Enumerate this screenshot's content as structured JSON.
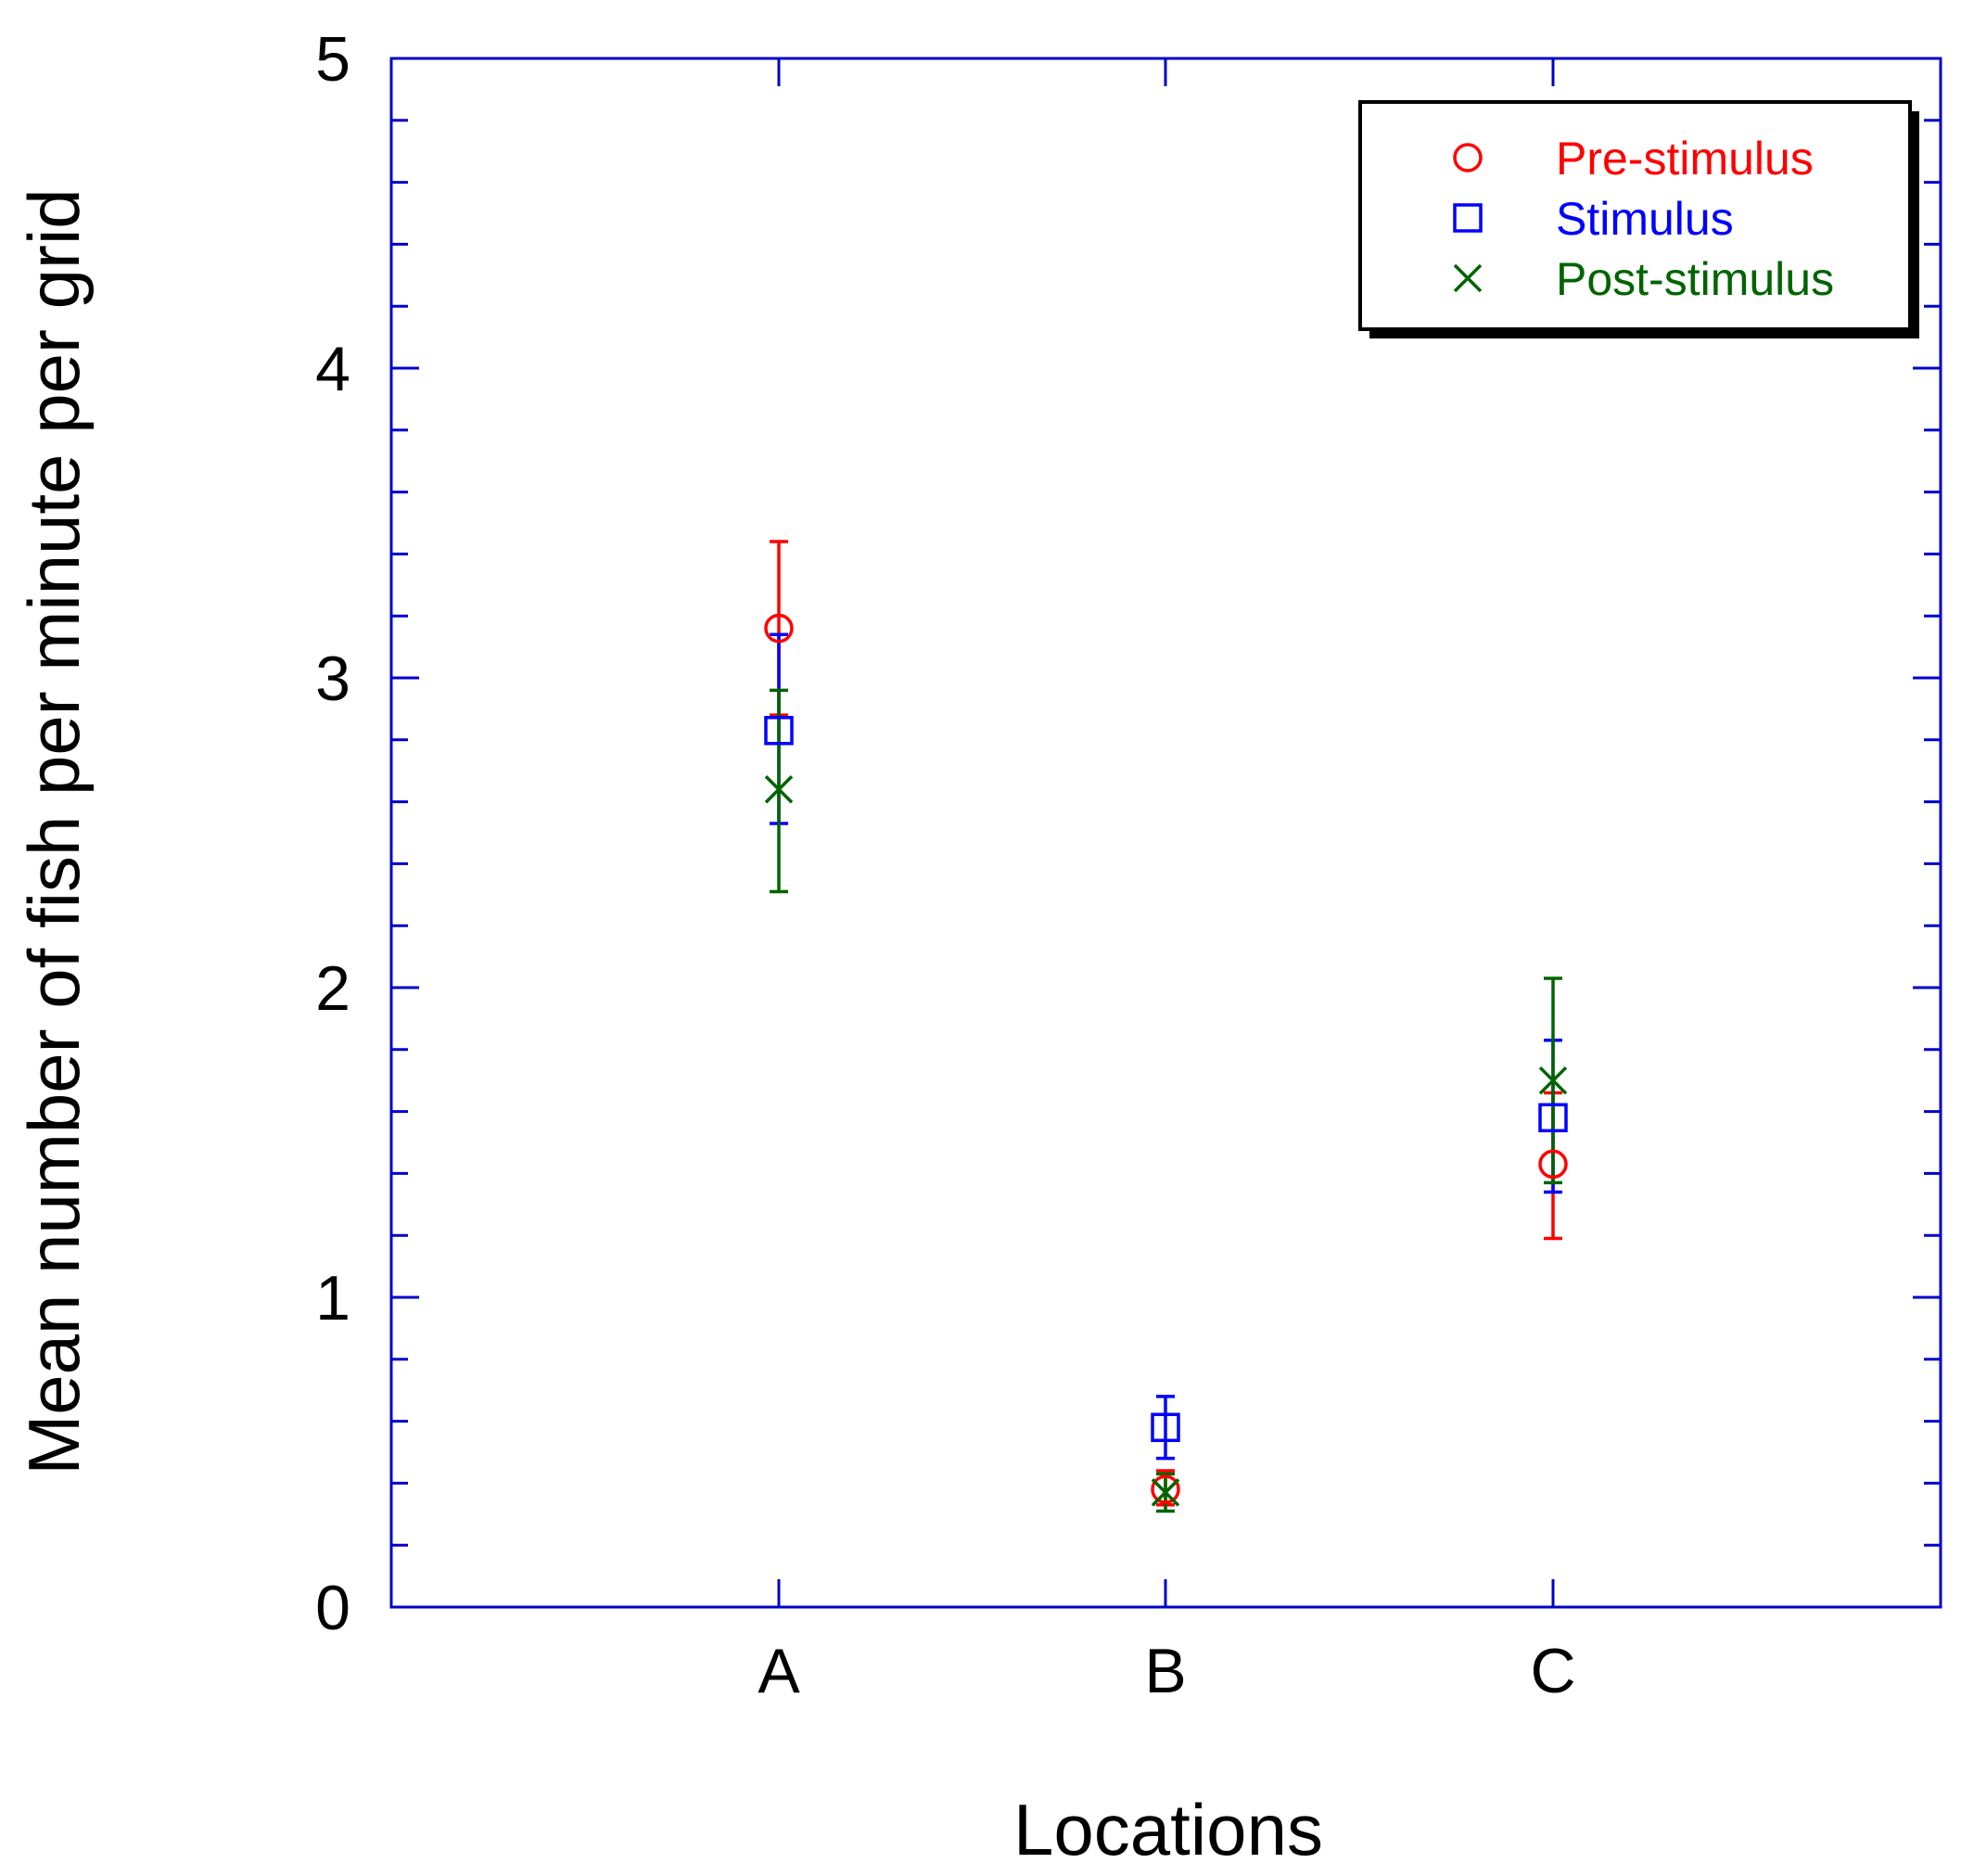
{
  "chart_data": {
    "type": "scatter",
    "title": "",
    "xlabel": "Locations",
    "ylabel": "Mean number of fish per minute per grid",
    "categories": [
      "A",
      "B",
      "C"
    ],
    "ylim": [
      0,
      5
    ],
    "yticks": [
      "0",
      "1",
      "2",
      "3",
      "4",
      "5"
    ],
    "y_minor_step": 0.2,
    "grid": false,
    "legend_position": "top-right",
    "axis_color": "#0000cc",
    "series": [
      {
        "name": "Pre-stimulus",
        "marker": "circle",
        "color": "#ff0000",
        "values": [
          3.16,
          0.38,
          1.43
        ],
        "err_low": [
          2.88,
          0.33,
          1.19
        ],
        "err_high": [
          3.44,
          0.44,
          1.66
        ]
      },
      {
        "name": "Stimulus",
        "marker": "square",
        "color": "#0000ff",
        "values": [
          2.83,
          0.58,
          1.58
        ],
        "err_low": [
          2.53,
          0.48,
          1.34
        ],
        "err_high": [
          3.14,
          0.68,
          1.83
        ]
      },
      {
        "name": "Post-stimulus",
        "marker": "x",
        "color": "#006400",
        "values": [
          2.64,
          0.37,
          1.7
        ],
        "err_low": [
          2.31,
          0.31,
          1.37
        ],
        "err_high": [
          2.96,
          0.43,
          2.03
        ]
      }
    ]
  }
}
